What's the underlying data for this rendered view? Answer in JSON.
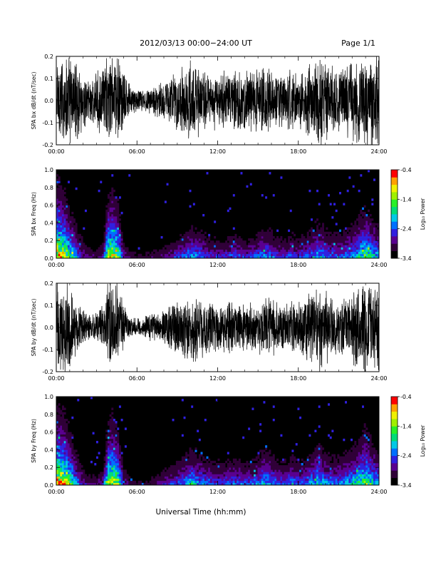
{
  "header": {
    "title": "2012/03/13  00:00−24:00 UT",
    "page": "Page 1/1"
  },
  "x_axis_title": "Universal Time (hh:mm)",
  "colors": {
    "trace": "#000000",
    "spectrogram_background": "#000000",
    "colormap": [
      "#000000",
      "#300038",
      "#5a0090",
      "#3020e0",
      "#0070ff",
      "#00c8e6",
      "#00dc78",
      "#28f028",
      "#a0f000",
      "#f0f000",
      "#ffa000",
      "#ff0000"
    ]
  },
  "chart_data": [
    {
      "type": "line",
      "name": "bx-waveform",
      "ylabel": "SPA bx dB/dt (nT/sec)",
      "xlim": [
        0,
        24
      ],
      "ylim": [
        -0.2,
        0.2
      ],
      "x_ticks": [
        "00:00",
        "06:00",
        "12:00",
        "18:00",
        "24:00"
      ],
      "y_ticks": [
        "-0.2",
        "-0.1",
        "0.0",
        "0.1",
        "0.2"
      ],
      "envelope": {
        "hours": [
          0,
          0.5,
          1,
          1.5,
          2,
          2.5,
          3,
          3.5,
          3.8,
          4.2,
          4.6,
          5,
          5.5,
          6,
          6.5,
          7,
          7.5,
          8,
          8.5,
          9,
          9.5,
          10,
          10.5,
          11,
          11.5,
          12,
          12.5,
          13,
          13.5,
          14,
          14.5,
          15,
          15.5,
          16,
          16.5,
          17,
          17.5,
          18,
          18.5,
          19,
          19.5,
          20,
          20.5,
          21,
          21.5,
          22,
          22.5,
          23,
          23.5,
          24
        ],
        "amplitude": [
          0.2,
          0.2,
          0.2,
          0.17,
          0.12,
          0.1,
          0.12,
          0.16,
          0.2,
          0.2,
          0.2,
          0.12,
          0.07,
          0.05,
          0.05,
          0.06,
          0.07,
          0.09,
          0.11,
          0.13,
          0.15,
          0.17,
          0.16,
          0.15,
          0.13,
          0.12,
          0.12,
          0.13,
          0.13,
          0.12,
          0.13,
          0.14,
          0.16,
          0.14,
          0.12,
          0.12,
          0.13,
          0.12,
          0.14,
          0.17,
          0.2,
          0.17,
          0.15,
          0.14,
          0.15,
          0.18,
          0.2,
          0.2,
          0.2,
          0.2
        ]
      }
    },
    {
      "type": "heatmap",
      "name": "bx-spectrogram",
      "ylabel": "SPA bx Freq (Hz)",
      "xlim": [
        0,
        24
      ],
      "ylim": [
        0,
        1.0
      ],
      "x_ticks": [
        "00:00",
        "06:00",
        "12:00",
        "18:00",
        "24:00"
      ],
      "y_ticks": [
        "0.0",
        "0.2",
        "0.4",
        "0.6",
        "0.8",
        "1.0"
      ],
      "colorbar": {
        "label": "Log₁₀ Power",
        "range": [
          -3.4,
          -0.4
        ],
        "ticks": [
          "-0.4",
          "-1.4",
          "-2.4",
          "-3.4"
        ]
      },
      "activity": {
        "hours": [
          0,
          0.5,
          1,
          1.5,
          2,
          2.5,
          3,
          3.5,
          3.8,
          4.2,
          4.6,
          5,
          5.5,
          6,
          6.5,
          7,
          7.5,
          8,
          8.5,
          9,
          9.5,
          10,
          10.5,
          11,
          11.5,
          12,
          12.5,
          13,
          13.5,
          14,
          14.5,
          15,
          15.5,
          16,
          16.5,
          17,
          17.5,
          18,
          18.5,
          19,
          19.5,
          20,
          20.5,
          21,
          21.5,
          22,
          22.5,
          23,
          23.5,
          24
        ],
        "relative_power": [
          1.0,
          0.9,
          0.7,
          0.5,
          0.3,
          0.22,
          0.2,
          0.3,
          0.8,
          0.9,
          0.75,
          0.3,
          0.2,
          0.15,
          0.15,
          0.17,
          0.2,
          0.25,
          0.3,
          0.35,
          0.4,
          0.5,
          0.45,
          0.4,
          0.35,
          0.33,
          0.33,
          0.38,
          0.38,
          0.33,
          0.35,
          0.4,
          0.5,
          0.42,
          0.35,
          0.33,
          0.4,
          0.35,
          0.38,
          0.45,
          0.55,
          0.45,
          0.42,
          0.4,
          0.45,
          0.5,
          0.6,
          0.7,
          0.6,
          0.5
        ]
      }
    },
    {
      "type": "line",
      "name": "by-waveform",
      "ylabel": "SPA by dB/dt (nT/sec)",
      "xlim": [
        0,
        24
      ],
      "ylim": [
        -0.2,
        0.2
      ],
      "x_ticks": [
        "00:00",
        "06:00",
        "12:00",
        "18:00",
        "24:00"
      ],
      "y_ticks": [
        "-0.2",
        "-0.1",
        "0.0",
        "0.1",
        "0.2"
      ],
      "envelope": {
        "hours": [
          0,
          0.5,
          1,
          1.5,
          2,
          2.5,
          3,
          3.5,
          3.8,
          4.2,
          4.6,
          5,
          5.5,
          6,
          6.5,
          7,
          7.5,
          8,
          8.5,
          9,
          9.5,
          10,
          10.5,
          11,
          11.5,
          12,
          12.5,
          13,
          13.5,
          14,
          14.5,
          15,
          15.5,
          16,
          16.5,
          17,
          17.5,
          18,
          18.5,
          19,
          19.5,
          20,
          20.5,
          21,
          21.5,
          22,
          22.5,
          23,
          23.5,
          24
        ],
        "amplitude": [
          0.2,
          0.2,
          0.2,
          0.14,
          0.08,
          0.06,
          0.06,
          0.1,
          0.2,
          0.2,
          0.2,
          0.1,
          0.05,
          0.04,
          0.05,
          0.06,
          0.06,
          0.08,
          0.1,
          0.12,
          0.14,
          0.16,
          0.14,
          0.13,
          0.11,
          0.1,
          0.1,
          0.11,
          0.11,
          0.1,
          0.11,
          0.12,
          0.13,
          0.12,
          0.11,
          0.1,
          0.12,
          0.11,
          0.13,
          0.16,
          0.2,
          0.16,
          0.13,
          0.12,
          0.13,
          0.16,
          0.2,
          0.2,
          0.2,
          0.2
        ]
      }
    },
    {
      "type": "heatmap",
      "name": "by-spectrogram",
      "ylabel": "SPA by Freq (Hz)",
      "xlim": [
        0,
        24
      ],
      "ylim": [
        0,
        1.0
      ],
      "x_ticks": [
        "00:00",
        "06:00",
        "12:00",
        "18:00",
        "24:00"
      ],
      "y_ticks": [
        "0.0",
        "0.2",
        "0.4",
        "0.6",
        "0.8",
        "1.0"
      ],
      "colorbar": {
        "label": "Log₁₀ Power",
        "range": [
          -3.4,
          -0.4
        ],
        "ticks": [
          "-0.4",
          "-1.4",
          "-2.4",
          "-3.4"
        ]
      },
      "activity": {
        "hours": [
          0,
          0.5,
          1,
          1.5,
          2,
          2.5,
          3,
          3.5,
          3.8,
          4.2,
          4.6,
          5,
          5.5,
          6,
          6.5,
          7,
          7.5,
          8,
          8.5,
          9,
          9.5,
          10,
          10.5,
          11,
          11.5,
          12,
          12.5,
          13,
          13.5,
          14,
          14.5,
          15,
          15.5,
          16,
          16.5,
          17,
          17.5,
          18,
          18.5,
          19,
          19.5,
          20,
          20.5,
          21,
          21.5,
          22,
          22.5,
          23,
          23.5,
          24
        ],
        "relative_power": [
          1.0,
          0.95,
          0.75,
          0.5,
          0.3,
          0.22,
          0.2,
          0.3,
          0.8,
          0.9,
          0.75,
          0.3,
          0.2,
          0.15,
          0.15,
          0.18,
          0.22,
          0.28,
          0.33,
          0.38,
          0.45,
          0.55,
          0.5,
          0.45,
          0.4,
          0.38,
          0.38,
          0.42,
          0.42,
          0.38,
          0.4,
          0.45,
          0.55,
          0.48,
          0.4,
          0.38,
          0.45,
          0.4,
          0.42,
          0.5,
          0.6,
          0.5,
          0.45,
          0.45,
          0.5,
          0.55,
          0.65,
          0.75,
          0.62,
          0.5
        ]
      }
    }
  ]
}
